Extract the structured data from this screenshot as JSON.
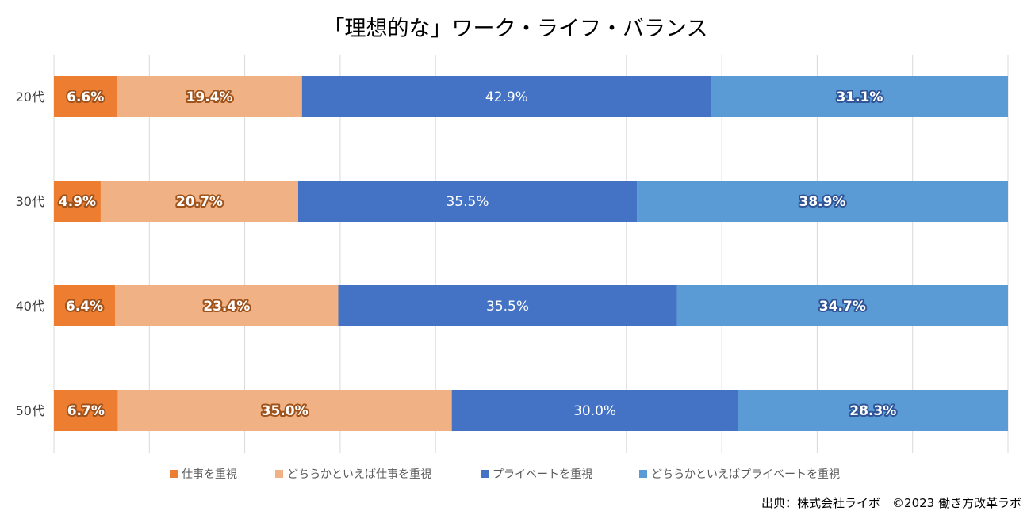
{
  "chart_data": {
    "type": "bar",
    "orientation": "horizontal",
    "stacked": "percent",
    "title": "「理想的な」ワーク・ライフ・バランス",
    "categories": [
      "20代",
      "30代",
      "40代",
      "50代"
    ],
    "series": [
      {
        "name": "仕事を重視",
        "color": "#ED7D31",
        "label_outline": "#A0521B",
        "values": [
          6.6,
          4.9,
          6.4,
          6.7
        ],
        "labels": [
          "6.6%",
          "4.9%",
          "6.4%",
          "6.7%"
        ]
      },
      {
        "name": "どちらかといえば仕事を重視",
        "color": "#F0B284",
        "label_outline": "#A0521B",
        "values": [
          19.4,
          20.7,
          23.4,
          35.0
        ],
        "labels": [
          "19.4%",
          "20.7%",
          "23.4%",
          "35.0%"
        ]
      },
      {
        "name": "プライベートを重視",
        "color": "#4472C4",
        "label_outline": "",
        "values": [
          42.9,
          35.5,
          35.5,
          30.0
        ],
        "labels": [
          "42.9%",
          "35.5%",
          "35.5%",
          "30.0%"
        ]
      },
      {
        "name": "どちらかといえばプライベートを重視",
        "color": "#5B9BD5",
        "label_outline": "#2F5597",
        "values": [
          31.1,
          38.9,
          34.7,
          28.3
        ],
        "labels": [
          "31.1%",
          "38.9%",
          "34.7%",
          "28.3%"
        ]
      }
    ],
    "xlim": [
      0,
      100
    ],
    "grid": true,
    "gridline_color": "#D9D9D9",
    "legend_position": "bottom"
  },
  "source": "出典：株式会社ライボ　©2023 働き方改革ラボ"
}
